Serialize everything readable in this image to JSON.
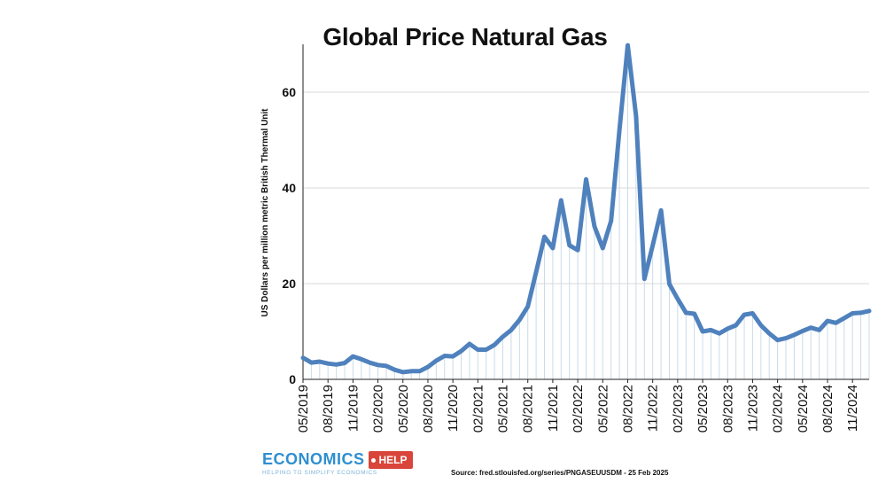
{
  "chart_data": {
    "type": "area",
    "title": "Global Price Natural Gas",
    "ylabel": "US Dollars per million metric British Thermal Unit",
    "xlabel": "",
    "ylim": [
      0,
      70
    ],
    "yticks": [
      0,
      20,
      40,
      60
    ],
    "grid": true,
    "legend": "none",
    "line_color": "#4f81bd",
    "x": [
      "05/2019",
      "06/2019",
      "07/2019",
      "08/2019",
      "09/2019",
      "10/2019",
      "11/2019",
      "12/2019",
      "01/2020",
      "02/2020",
      "03/2020",
      "04/2020",
      "05/2020",
      "06/2020",
      "07/2020",
      "08/2020",
      "09/2020",
      "10/2020",
      "11/2020",
      "12/2020",
      "01/2021",
      "02/2021",
      "03/2021",
      "04/2021",
      "05/2021",
      "06/2021",
      "07/2021",
      "08/2021",
      "09/2021",
      "10/2021",
      "11/2021",
      "12/2021",
      "01/2022",
      "02/2022",
      "03/2022",
      "04/2022",
      "05/2022",
      "06/2022",
      "07/2022",
      "08/2022",
      "09/2022",
      "10/2022",
      "11/2022",
      "12/2022",
      "01/2023",
      "02/2023",
      "03/2023",
      "04/2023",
      "05/2023",
      "06/2023",
      "07/2023",
      "08/2023",
      "09/2023",
      "10/2023",
      "11/2023",
      "12/2023",
      "01/2024",
      "02/2024",
      "03/2024",
      "04/2024",
      "05/2024",
      "06/2024",
      "07/2024",
      "08/2024",
      "09/2024",
      "10/2024",
      "11/2024",
      "12/2024",
      "01/2025"
    ],
    "values": [
      4.5,
      3.5,
      3.7,
      3.3,
      3.1,
      3.4,
      4.8,
      4.2,
      3.5,
      3.0,
      2.8,
      2.0,
      1.5,
      1.7,
      1.7,
      2.6,
      3.9,
      4.9,
      4.8,
      5.9,
      7.4,
      6.2,
      6.2,
      7.2,
      8.9,
      10.3,
      12.4,
      15.2,
      22.4,
      29.8,
      27.4,
      37.4,
      28.0,
      27.0,
      41.8,
      32.0,
      27.4,
      33.1,
      52.0,
      69.8,
      55.0,
      21.0,
      28.0,
      35.3,
      19.9,
      16.8,
      13.9,
      13.7,
      10.0,
      10.3,
      9.6,
      10.6,
      11.3,
      13.5,
      13.8,
      11.3,
      9.6,
      8.2,
      8.6,
      9.3,
      10.1,
      10.8,
      10.3,
      12.2,
      11.8,
      12.8,
      13.8,
      13.9,
      14.3
    ],
    "x_ticks": [
      "05/2019",
      "08/2019",
      "11/2019",
      "02/2020",
      "05/2020",
      "08/2020",
      "11/2020",
      "02/2021",
      "05/2021",
      "08/2021",
      "11/2021",
      "02/2022",
      "05/2022",
      "08/2022",
      "11/2022",
      "02/2023",
      "05/2023",
      "08/2023",
      "11/2023",
      "02/2024",
      "05/2024",
      "08/2024",
      "11/2024"
    ]
  },
  "logo": {
    "word": "ECONOMICS",
    "tag": "HELP",
    "tagline": "HELPING TO SIMPLIFY ECONOMICS"
  },
  "source": "Source: fred.stlouisfed.org/series/PNGASEUUSDM - 25 Feb 2025"
}
